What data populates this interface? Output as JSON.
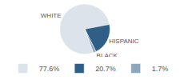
{
  "chart_data": {
    "type": "pie",
    "categories": [
      "WHITE",
      "HISPANIC",
      "BLACK"
    ],
    "values": [
      77.6,
      20.7,
      1.7
    ],
    "value_labels": [
      "77.6%",
      "20.7%",
      "1.7%"
    ],
    "colors": [
      "#dde3ea",
      "#2f5f87",
      "#8da7bd"
    ],
    "legend": "bottom"
  }
}
